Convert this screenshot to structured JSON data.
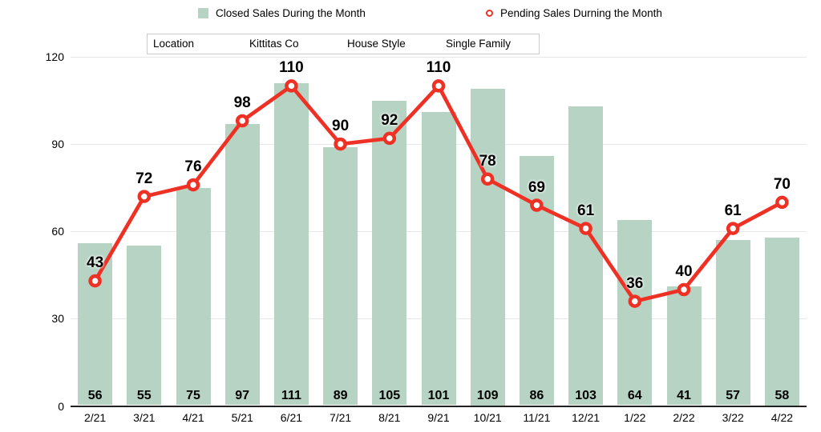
{
  "legend": {
    "closed_label": "Closed Sales During the Month",
    "pending_label": "Pending Sales Durning the Month"
  },
  "filters": {
    "location_label": "Location",
    "location_value": "Kittitas Co",
    "style_label": "House Style",
    "style_value": "Single Family"
  },
  "colors": {
    "bar": "#b7d3c4",
    "line": "#ee3124",
    "marker_fill": "#ffffff",
    "grid": "#e8e8e8",
    "axis": "#212121",
    "text": "#000000",
    "filter_border": "#cbcbcb"
  },
  "chart_data": {
    "type": "bar",
    "subtype": "bar+line combo",
    "categories": [
      "2/21",
      "3/21",
      "4/21",
      "5/21",
      "6/21",
      "7/21",
      "8/21",
      "9/21",
      "10/21",
      "11/21",
      "12/21",
      "1/22",
      "2/22",
      "3/22",
      "4/22"
    ],
    "series": [
      {
        "name": "Closed Sales During the Month",
        "type": "bar",
        "color": "#b7d3c4",
        "values": [
          56,
          55,
          75,
          97,
          111,
          89,
          105,
          101,
          109,
          86,
          103,
          64,
          41,
          57,
          58
        ]
      },
      {
        "name": "Pending Sales Durning the Month",
        "type": "line",
        "color": "#ee3124",
        "values": [
          43,
          72,
          76,
          98,
          110,
          90,
          92,
          110,
          78,
          69,
          61,
          36,
          40,
          61,
          70
        ]
      }
    ],
    "title": "",
    "xlabel": "",
    "ylabel": "",
    "yticks": [
      0,
      30,
      60,
      90,
      120
    ],
    "ylim": [
      0,
      120
    ],
    "grid": true,
    "legend_position": "top",
    "data_labels": "shown for both series"
  }
}
